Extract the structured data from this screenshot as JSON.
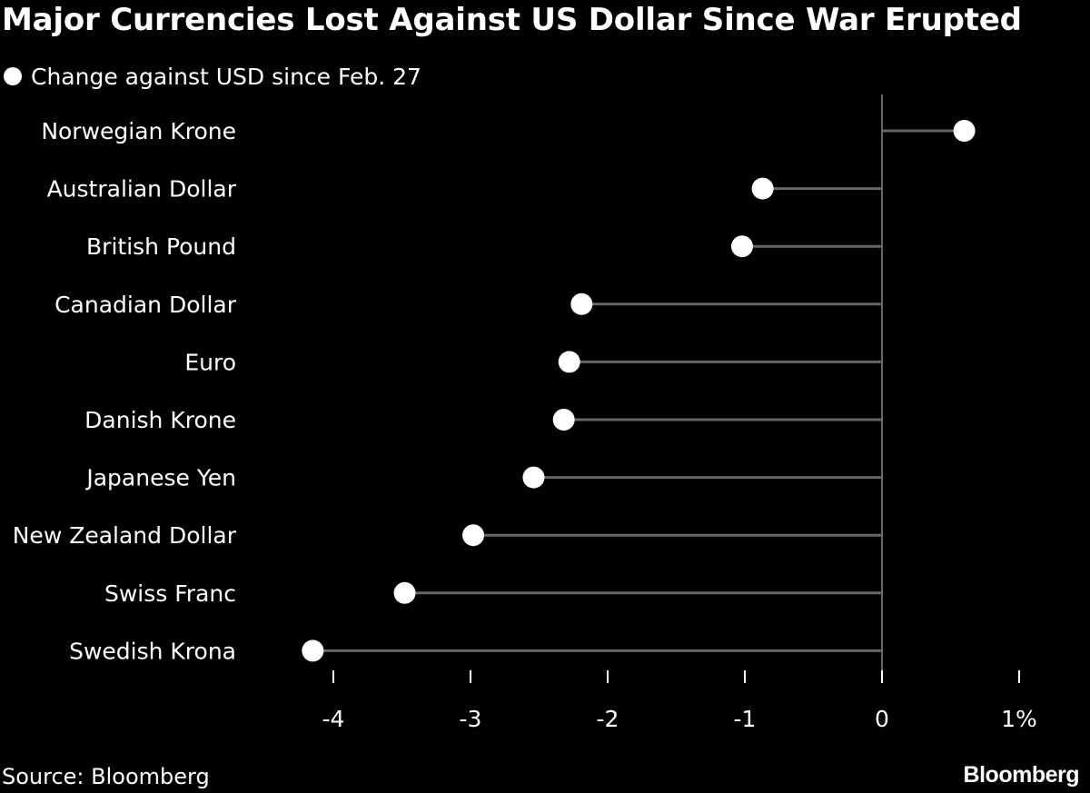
{
  "title": "Major Currencies Lost Against US Dollar Since War Erupted",
  "legend_label": "Change against USD since Feb. 27",
  "source": "Source: Bloomberg",
  "brand": "Bloomberg",
  "colors": {
    "background": "#000000",
    "text": "#ffffff",
    "stem": "#666666",
    "dot": "#ffffff"
  },
  "chart_data": {
    "type": "lollipop",
    "categories": [
      "Norwegian Krone",
      "Australian Dollar",
      "British Pound",
      "Canadian Dollar",
      "Euro",
      "Danish Krone",
      "Japanese Yen",
      "New Zealand Dollar",
      "Swiss Franc",
      "Swedish Krona"
    ],
    "values": [
      0.6,
      -0.87,
      -1.02,
      -2.19,
      -2.28,
      -2.32,
      -2.54,
      -2.98,
      -3.48,
      -4.15
    ],
    "xlim": [
      -4.4,
      1.2
    ],
    "ticks": [
      -4,
      -3,
      -2,
      -1,
      0,
      1
    ],
    "tick_labels": [
      "-4",
      "-3",
      "-2",
      "-1",
      "0",
      "1%"
    ],
    "legend_position": "top-left",
    "grid": false
  }
}
